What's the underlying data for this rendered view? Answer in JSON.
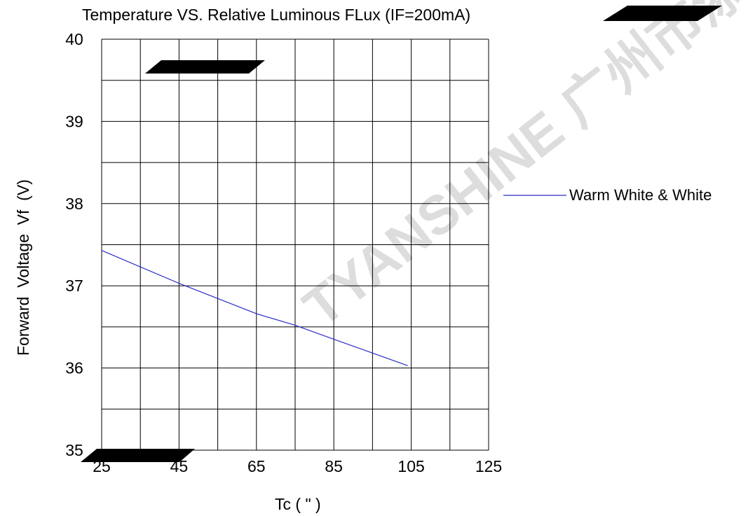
{
  "chart_data": {
    "type": "line",
    "title": "Temperature VS.  Relative Luminous FLux (IF=200mA)",
    "xlabel": "Tc ( \" )",
    "ylabel": "Forward  Voltage  Vf  (V)",
    "xlim": [
      25,
      125
    ],
    "ylim": [
      35,
      40
    ],
    "x_ticks": [
      25,
      45,
      65,
      85,
      105,
      125
    ],
    "y_ticks": [
      35,
      36,
      37,
      38,
      39,
      40
    ],
    "x_tick_labels": [
      "25",
      "45",
      "65",
      "85",
      "105",
      "125"
    ],
    "y_tick_labels": [
      "35",
      "36",
      "37",
      "38",
      "39",
      "40"
    ],
    "x_minor_step": 10,
    "y_minor_step": 0.5,
    "grid": true,
    "legend_position": "right",
    "series": [
      {
        "name": "Warm White & White",
        "color": "#2b2bc8",
        "x": [
          25,
          45,
          65,
          75,
          85,
          104
        ],
        "y": [
          37.43,
          37.03,
          36.66,
          36.52,
          36.35,
          36.03
        ]
      }
    ],
    "watermark": "TYANSHINE 广州市添鑫光电有限公司 Guangzhou Tianxin Photoelectric Co.,Ltd"
  }
}
